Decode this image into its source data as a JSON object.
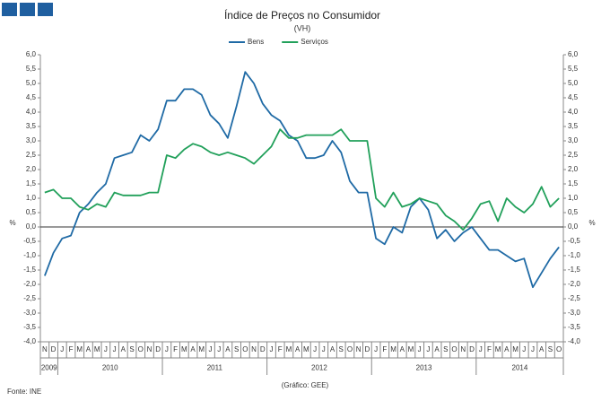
{
  "chart_data": {
    "type": "line",
    "title": "Índice de Preços no Consumidor",
    "subtitle": "(VH)",
    "y_label": "%",
    "source": "Fonte: INE",
    "note": "(Gráfico: GEE)",
    "categories": [
      "N",
      "D",
      "J",
      "F",
      "M",
      "A",
      "M",
      "J",
      "J",
      "A",
      "S",
      "O",
      "N",
      "D",
      "J",
      "F",
      "M",
      "A",
      "M",
      "J",
      "J",
      "A",
      "S",
      "O",
      "N",
      "D",
      "J",
      "F",
      "M",
      "A",
      "M",
      "J",
      "J",
      "A",
      "S",
      "O",
      "N",
      "D",
      "J",
      "F",
      "M",
      "A",
      "M",
      "J",
      "J",
      "A",
      "S",
      "O",
      "N",
      "D",
      "J",
      "F",
      "M",
      "A",
      "M",
      "J",
      "J",
      "A",
      "S",
      "O"
    ],
    "years": [
      "2009",
      "2010",
      "2011",
      "2012",
      "2013",
      "2014"
    ],
    "series": [
      {
        "name": "Bens",
        "color": "#1f6aa5",
        "values": [
          -1.7,
          -0.9,
          -0.4,
          -0.3,
          0.5,
          0.8,
          1.2,
          1.5,
          2.4,
          2.5,
          2.6,
          3.2,
          3.0,
          3.4,
          4.4,
          4.4,
          4.8,
          4.8,
          4.6,
          3.9,
          3.6,
          3.1,
          4.2,
          5.4,
          5.0,
          4.3,
          3.9,
          3.7,
          3.2,
          3.0,
          2.4,
          2.4,
          2.5,
          3.0,
          2.6,
          1.6,
          1.2,
          1.2,
          -0.4,
          -0.6,
          0.0,
          -0.2,
          0.7,
          1.0,
          0.6,
          -0.4,
          -0.1,
          -0.5,
          -0.2,
          0.0,
          -0.4,
          -0.8,
          -0.8,
          -1.0,
          -1.2,
          -1.1,
          -2.1,
          -1.6,
          -1.1,
          -0.7
        ]
      },
      {
        "name": "Serviços",
        "color": "#21a05a",
        "values": [
          1.2,
          1.3,
          1.0,
          1.0,
          0.7,
          0.6,
          0.8,
          0.7,
          1.2,
          1.1,
          1.1,
          1.1,
          1.2,
          1.2,
          2.5,
          2.4,
          2.7,
          2.9,
          2.8,
          2.6,
          2.5,
          2.6,
          2.5,
          2.4,
          2.2,
          2.5,
          2.8,
          3.4,
          3.1,
          3.1,
          3.2,
          3.2,
          3.2,
          3.2,
          3.4,
          3.0,
          3.0,
          3.0,
          1.0,
          0.7,
          1.2,
          0.7,
          0.8,
          1.0,
          0.9,
          0.8,
          0.4,
          0.2,
          -0.1,
          0.3,
          0.8,
          0.9,
          0.2,
          1.0,
          0.7,
          0.5,
          0.8,
          1.4,
          0.7,
          1.0
        ]
      }
    ],
    "ylim": [
      -4.0,
      6.0
    ],
    "yticks": [
      {
        "value": 6.0,
        "label": "6,0"
      },
      {
        "value": 5.5,
        "label": "5,5"
      },
      {
        "value": 5.0,
        "label": "5,0"
      },
      {
        "value": 4.5,
        "label": "4,5"
      },
      {
        "value": 4.0,
        "label": "4,0"
      },
      {
        "value": 3.5,
        "label": "3,5"
      },
      {
        "value": 3.0,
        "label": "3,0"
      },
      {
        "value": 2.5,
        "label": "2,5"
      },
      {
        "value": 2.0,
        "label": "2,0"
      },
      {
        "value": 1.5,
        "label": "1,5"
      },
      {
        "value": 1.0,
        "label": "1,0"
      },
      {
        "value": 0.5,
        "label": "0,5"
      },
      {
        "value": 0.0,
        "label": "0,0"
      },
      {
        "value": -0.5,
        "label": "-0,5"
      },
      {
        "value": -1.0,
        "label": "-1,0"
      },
      {
        "value": -1.5,
        "label": "-1,5"
      },
      {
        "value": -2.0,
        "label": "-2,0"
      },
      {
        "value": -2.5,
        "label": "-2,5"
      },
      {
        "value": -3.0,
        "label": "-3,0"
      },
      {
        "value": -3.5,
        "label": "-3,5"
      },
      {
        "value": -4.0,
        "label": "-4,0"
      }
    ],
    "legend": "top"
  }
}
